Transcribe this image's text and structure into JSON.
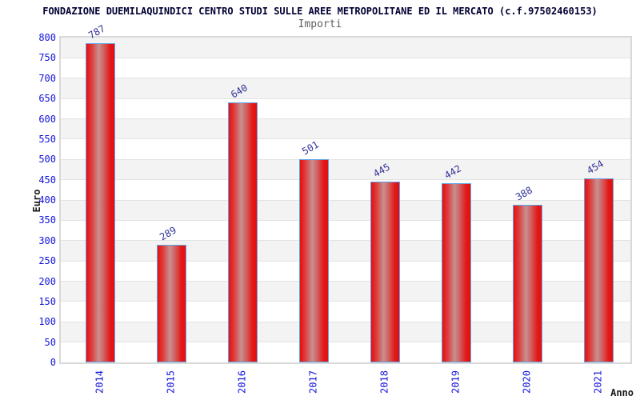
{
  "chart_data": {
    "type": "bar",
    "title": "FONDAZIONE DUEMILAQUINDICI CENTRO STUDI SULLE AREE METROPOLITANE ED IL MERCATO (c.f.97502460153)",
    "subtitle": "Importi",
    "xlabel": "Anno",
    "ylabel": "Euro",
    "categories": [
      "2014",
      "2015",
      "2016",
      "2017",
      "2018",
      "2019",
      "2020",
      "2021"
    ],
    "values": [
      787,
      289,
      640,
      501,
      445,
      442,
      388,
      454
    ],
    "ylim": [
      0,
      800
    ],
    "ytick_step": 50,
    "grid": "alternating horizontal bands every 50 units",
    "legend": "none",
    "colors": {
      "bar_fill_edge": "#e80e0e",
      "bar_fill_highlight": "#c79090",
      "bar_border": "#60a5e6",
      "tick_label": "#1414dd",
      "value_label": "#333399",
      "band_gray": "#f3f3f3",
      "band_white": "#ffffff",
      "plot_border": "#d9d9d9",
      "title_color": "#000033",
      "subtitle_color": "#5f5f5f",
      "axis_title_color": "#1a1a1a"
    }
  }
}
